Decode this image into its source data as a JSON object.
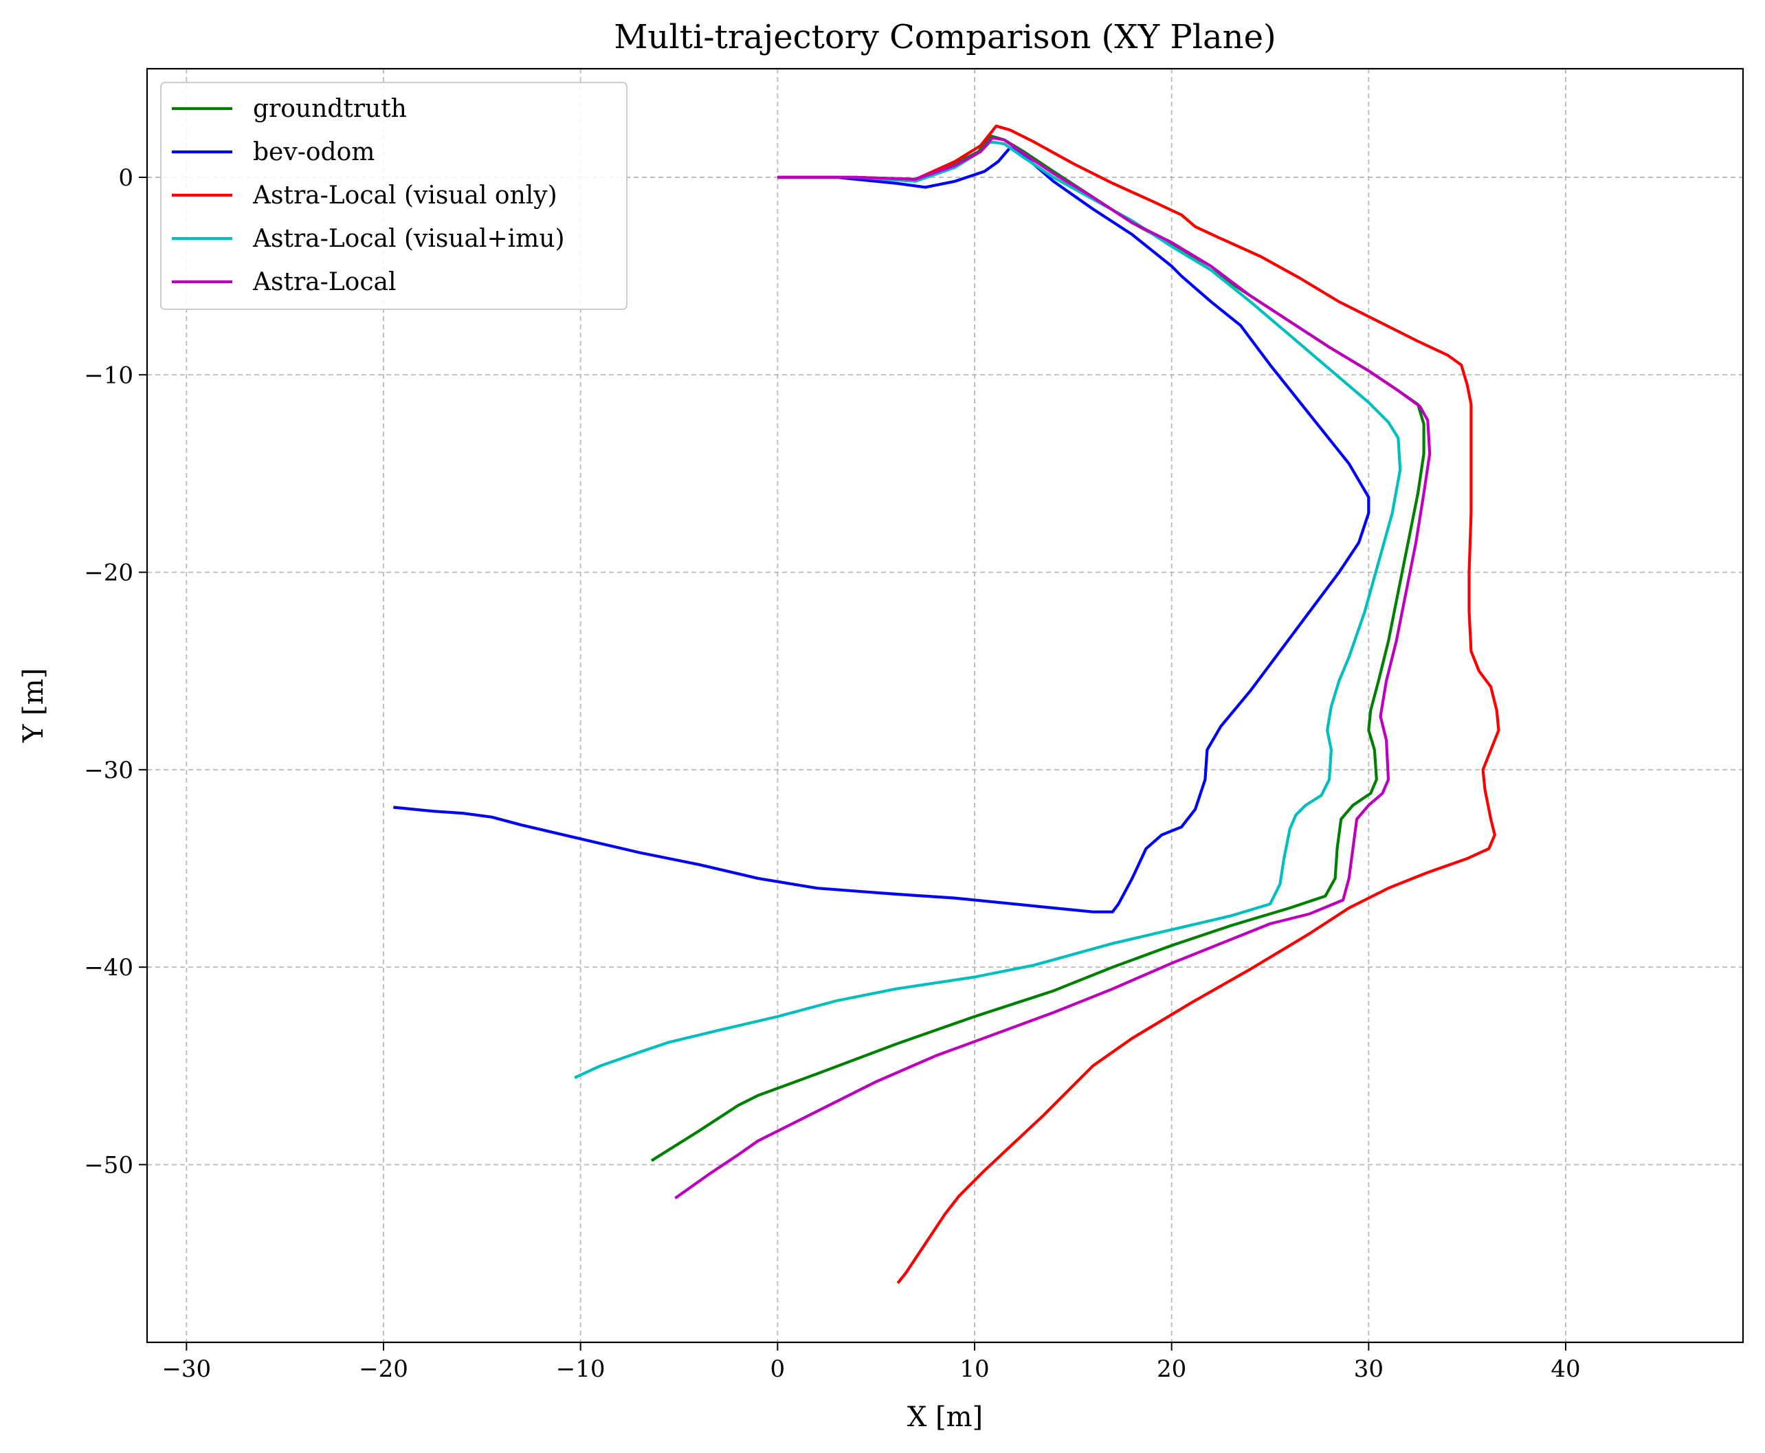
{
  "chart_data": {
    "type": "line",
    "title": "Multi-trajectory Comparison (XY Plane)",
    "xlabel": "X [m]",
    "ylabel": "Y [m]",
    "xlim": [
      -32,
      49
    ],
    "ylim": [
      -59,
      5.5
    ],
    "xticks": [
      -30,
      -20,
      -10,
      0,
      10,
      20,
      30,
      40
    ],
    "yticks": [
      0,
      -10,
      -20,
      -30,
      -40,
      -50
    ],
    "grid": true,
    "legend_position": "top-left",
    "series": [
      {
        "name": "groundtruth",
        "color": "#008000",
        "points": [
          [
            0,
            0
          ],
          [
            4,
            0
          ],
          [
            7,
            -0.1
          ],
          [
            9,
            0.7
          ],
          [
            10.2,
            1.3
          ],
          [
            10.8,
            2.1
          ],
          [
            11.5,
            1.9
          ],
          [
            12.5,
            1.3
          ],
          [
            14,
            0.3
          ],
          [
            16,
            -1
          ],
          [
            18,
            -2.3
          ],
          [
            20,
            -3.4
          ],
          [
            22,
            -4.7
          ],
          [
            24,
            -6
          ],
          [
            26,
            -7.3
          ],
          [
            28,
            -8.6
          ],
          [
            30,
            -9.8
          ],
          [
            31.5,
            -10.8
          ],
          [
            32.5,
            -11.5
          ],
          [
            32.8,
            -12.5
          ],
          [
            32.8,
            -14
          ],
          [
            32.5,
            -16
          ],
          [
            32,
            -18.5
          ],
          [
            31.5,
            -21
          ],
          [
            31,
            -23.5
          ],
          [
            30.5,
            -25.5
          ],
          [
            30.1,
            -27
          ],
          [
            30,
            -28
          ],
          [
            30.3,
            -29
          ],
          [
            30.4,
            -30.5
          ],
          [
            30.1,
            -31.2
          ],
          [
            29.2,
            -31.8
          ],
          [
            28.6,
            -32.5
          ],
          [
            28.4,
            -34
          ],
          [
            28.3,
            -35.5
          ],
          [
            27.8,
            -36.4
          ],
          [
            26,
            -37
          ],
          [
            23,
            -37.9
          ],
          [
            20,
            -38.9
          ],
          [
            17,
            -40
          ],
          [
            14,
            -41.2
          ],
          [
            10,
            -42.5
          ],
          [
            6,
            -43.9
          ],
          [
            2,
            -45.4
          ],
          [
            -1,
            -46.5
          ],
          [
            -2,
            -47
          ],
          [
            -4,
            -48.3
          ],
          [
            -6.4,
            -49.8
          ]
        ]
      },
      {
        "name": "bev-odom",
        "color": "#0000ff",
        "points": [
          [
            0,
            0
          ],
          [
            3,
            0
          ],
          [
            6,
            -0.3
          ],
          [
            7.5,
            -0.5
          ],
          [
            9,
            -0.2
          ],
          [
            10.5,
            0.3
          ],
          [
            11.2,
            0.8
          ],
          [
            11.8,
            1.5
          ],
          [
            12.5,
            1.1
          ],
          [
            14,
            -0.2
          ],
          [
            16,
            -1.6
          ],
          [
            18,
            -2.9
          ],
          [
            20,
            -4.5
          ],
          [
            20.5,
            -5
          ],
          [
            22,
            -6.3
          ],
          [
            23.5,
            -7.5
          ],
          [
            25,
            -9.5
          ],
          [
            27,
            -12
          ],
          [
            29,
            -14.5
          ],
          [
            30,
            -16.2
          ],
          [
            30,
            -17
          ],
          [
            29.5,
            -18.5
          ],
          [
            28.5,
            -20
          ],
          [
            27,
            -22
          ],
          [
            25.5,
            -24
          ],
          [
            24,
            -26
          ],
          [
            22.5,
            -27.8
          ],
          [
            21.8,
            -29
          ],
          [
            21.7,
            -30.5
          ],
          [
            21.2,
            -32
          ],
          [
            20.5,
            -32.9
          ],
          [
            19.5,
            -33.3
          ],
          [
            18.7,
            -34
          ],
          [
            18,
            -35.5
          ],
          [
            17.3,
            -36.8
          ],
          [
            17,
            -37.2
          ],
          [
            16,
            -37.2
          ],
          [
            14,
            -37
          ],
          [
            12,
            -36.8
          ],
          [
            9,
            -36.5
          ],
          [
            6,
            -36.3
          ],
          [
            2,
            -36
          ],
          [
            -1,
            -35.5
          ],
          [
            -4,
            -34.8
          ],
          [
            -7,
            -34.2
          ],
          [
            -10,
            -33.5
          ],
          [
            -13,
            -32.8
          ],
          [
            -14.5,
            -32.4
          ],
          [
            -16,
            -32.2
          ],
          [
            -17.5,
            -32.1
          ],
          [
            -19.5,
            -31.9
          ]
        ]
      },
      {
        "name": "Astra-Local (visual only)",
        "color": "#ff0000",
        "points": [
          [
            0,
            0
          ],
          [
            4,
            0
          ],
          [
            7,
            -0.1
          ],
          [
            9,
            0.8
          ],
          [
            10.3,
            1.6
          ],
          [
            11.1,
            2.6
          ],
          [
            11.8,
            2.4
          ],
          [
            13,
            1.8
          ],
          [
            15,
            0.7
          ],
          [
            17,
            -0.3
          ],
          [
            19,
            -1.2
          ],
          [
            20.5,
            -1.9
          ],
          [
            21.2,
            -2.5
          ],
          [
            22.5,
            -3.1
          ],
          [
            24.5,
            -4
          ],
          [
            26.5,
            -5.1
          ],
          [
            28.5,
            -6.3
          ],
          [
            30.5,
            -7.3
          ],
          [
            32.5,
            -8.3
          ],
          [
            34,
            -9
          ],
          [
            34.7,
            -9.5
          ],
          [
            35,
            -10.5
          ],
          [
            35.2,
            -11.5
          ],
          [
            35.2,
            -14
          ],
          [
            35.2,
            -17
          ],
          [
            35.1,
            -20
          ],
          [
            35.1,
            -22
          ],
          [
            35.2,
            -24
          ],
          [
            35.6,
            -25
          ],
          [
            36.2,
            -25.8
          ],
          [
            36.5,
            -27
          ],
          [
            36.6,
            -28
          ],
          [
            36.2,
            -29
          ],
          [
            35.8,
            -30
          ],
          [
            35.9,
            -31
          ],
          [
            36.2,
            -32.5
          ],
          [
            36.4,
            -33.3
          ],
          [
            36.1,
            -34
          ],
          [
            35,
            -34.5
          ],
          [
            33,
            -35.2
          ],
          [
            31,
            -36
          ],
          [
            29,
            -37
          ],
          [
            27,
            -38.3
          ],
          [
            24,
            -40.1
          ],
          [
            21,
            -41.8
          ],
          [
            18,
            -43.6
          ],
          [
            16,
            -45
          ],
          [
            15,
            -46
          ],
          [
            13.5,
            -47.5
          ],
          [
            12,
            -48.9
          ],
          [
            10.5,
            -50.3
          ],
          [
            9.2,
            -51.6
          ],
          [
            8.5,
            -52.5
          ],
          [
            7.5,
            -54
          ],
          [
            6.5,
            -55.5
          ],
          [
            6.1,
            -56
          ]
        ]
      },
      {
        "name": "Astra-Local (visual+imu)",
        "color": "#00bfbf",
        "points": [
          [
            0,
            0
          ],
          [
            4,
            0
          ],
          [
            7,
            -0.2
          ],
          [
            9,
            0.5
          ],
          [
            10.3,
            1.3
          ],
          [
            10.8,
            1.8
          ],
          [
            11.5,
            1.7
          ],
          [
            12.5,
            1
          ],
          [
            14,
            0
          ],
          [
            16,
            -1.1
          ],
          [
            18,
            -2.2
          ],
          [
            20,
            -3.5
          ],
          [
            22,
            -4.7
          ],
          [
            24,
            -6.3
          ],
          [
            26,
            -8
          ],
          [
            28,
            -9.7
          ],
          [
            30,
            -11.4
          ],
          [
            31,
            -12.4
          ],
          [
            31.5,
            -13.2
          ],
          [
            31.6,
            -14.8
          ],
          [
            31.2,
            -17
          ],
          [
            30.5,
            -19.5
          ],
          [
            29.8,
            -22
          ],
          [
            29,
            -24.3
          ],
          [
            28.5,
            -25.5
          ],
          [
            28.1,
            -26.8
          ],
          [
            27.9,
            -28
          ],
          [
            28.1,
            -29
          ],
          [
            28,
            -30.5
          ],
          [
            27.6,
            -31.3
          ],
          [
            26.8,
            -31.8
          ],
          [
            26.3,
            -32.3
          ],
          [
            26,
            -33
          ],
          [
            25.7,
            -34.5
          ],
          [
            25.5,
            -35.8
          ],
          [
            25,
            -36.8
          ],
          [
            23,
            -37.4
          ],
          [
            20,
            -38.1
          ],
          [
            17,
            -38.8
          ],
          [
            13,
            -39.9
          ],
          [
            10,
            -40.5
          ],
          [
            6,
            -41.1
          ],
          [
            3,
            -41.7
          ],
          [
            0,
            -42.5
          ],
          [
            -3,
            -43.2
          ],
          [
            -5.5,
            -43.8
          ],
          [
            -7,
            -44.3
          ],
          [
            -9,
            -45
          ],
          [
            -10.3,
            -45.6
          ]
        ]
      },
      {
        "name": "Astra-Local",
        "color": "#bf00bf",
        "points": [
          [
            0,
            0
          ],
          [
            4,
            0
          ],
          [
            7,
            -0.1
          ],
          [
            9,
            0.6
          ],
          [
            10.3,
            1.3
          ],
          [
            10.9,
            2
          ],
          [
            11.5,
            1.9
          ],
          [
            12.5,
            1.2
          ],
          [
            14,
            0.2
          ],
          [
            16,
            -1
          ],
          [
            18,
            -2.3
          ],
          [
            20,
            -3.3
          ],
          [
            22,
            -4.5
          ],
          [
            24,
            -6
          ],
          [
            26,
            -7.3
          ],
          [
            28,
            -8.6
          ],
          [
            30,
            -9.8
          ],
          [
            31.5,
            -10.8
          ],
          [
            32.6,
            -11.6
          ],
          [
            33,
            -12.3
          ],
          [
            33.1,
            -14
          ],
          [
            32.8,
            -16
          ],
          [
            32.4,
            -18.5
          ],
          [
            31.9,
            -21
          ],
          [
            31.4,
            -23.5
          ],
          [
            30.9,
            -25.5
          ],
          [
            30.6,
            -27.3
          ],
          [
            30.9,
            -28.5
          ],
          [
            31,
            -30.5
          ],
          [
            30.7,
            -31.2
          ],
          [
            30,
            -31.8
          ],
          [
            29.4,
            -32.5
          ],
          [
            29.2,
            -34
          ],
          [
            29,
            -35.5
          ],
          [
            28.7,
            -36.6
          ],
          [
            27,
            -37.3
          ],
          [
            25,
            -37.8
          ],
          [
            23,
            -38.6
          ],
          [
            20,
            -39.8
          ],
          [
            17,
            -41.1
          ],
          [
            14,
            -42.3
          ],
          [
            11,
            -43.4
          ],
          [
            8,
            -44.5
          ],
          [
            5,
            -45.8
          ],
          [
            2,
            -47.3
          ],
          [
            -1,
            -48.8
          ],
          [
            -2,
            -49.5
          ],
          [
            -3.5,
            -50.5
          ],
          [
            -5.2,
            -51.7
          ]
        ]
      }
    ]
  }
}
